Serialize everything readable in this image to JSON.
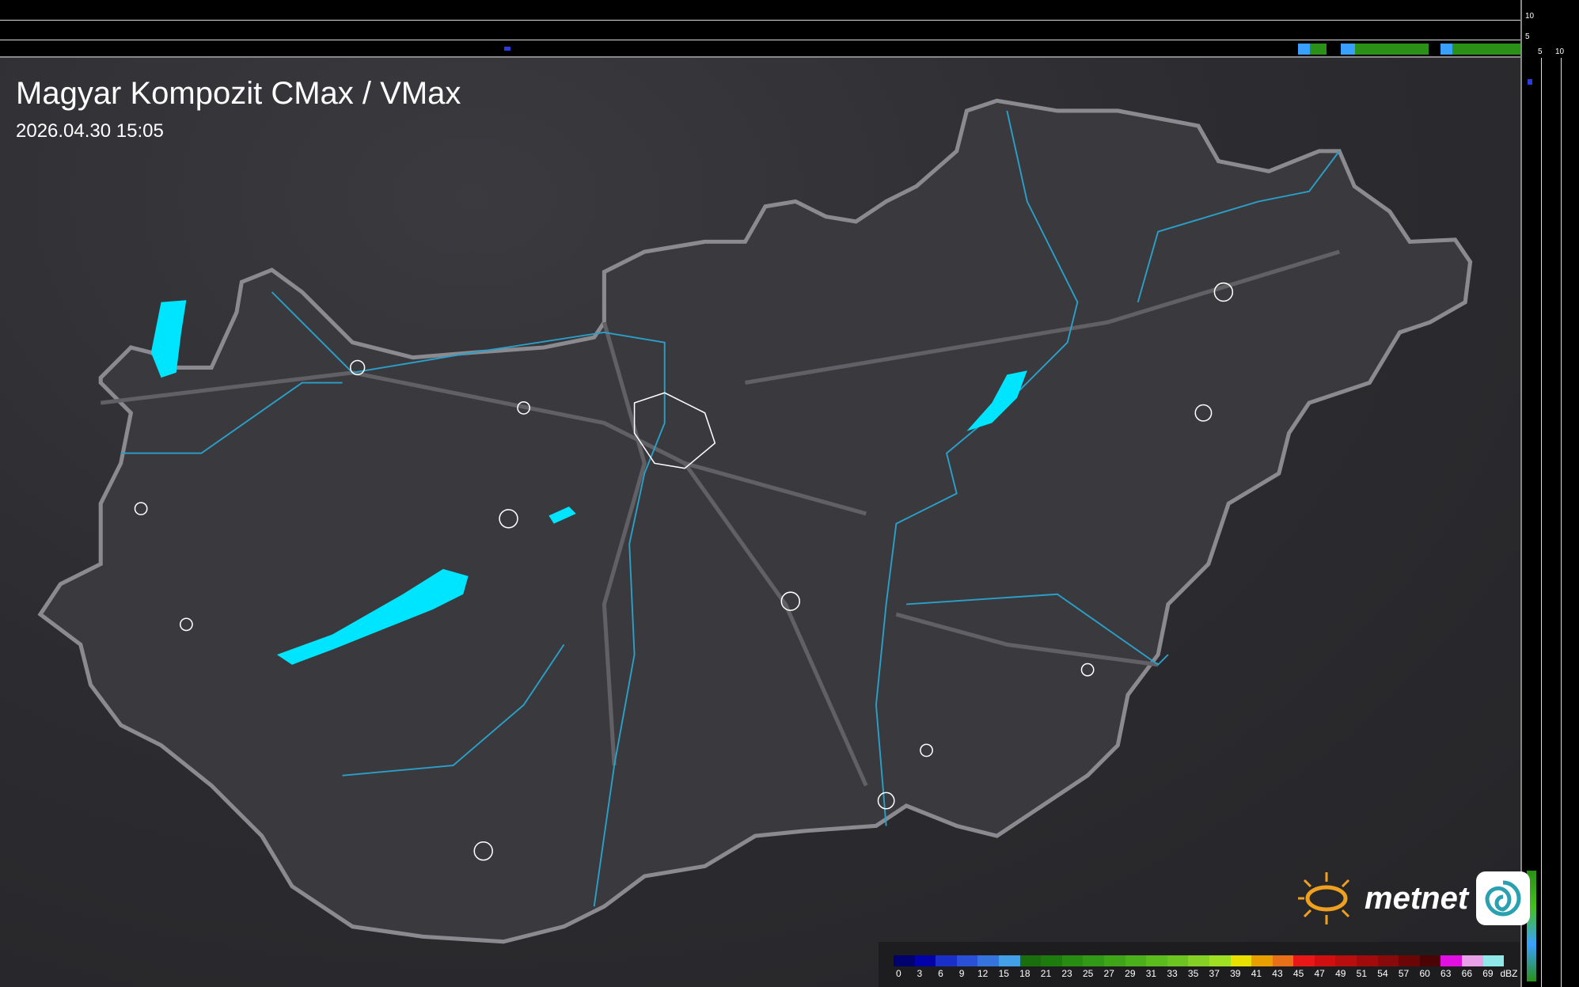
{
  "title": "Magyar Kompozit CMax / VMax",
  "timestamp": "2026.04.30 15:05",
  "profile_axes": {
    "top_ticks": [
      "10",
      "5"
    ],
    "right_ticks": [
      "5",
      "10"
    ]
  },
  "legend": {
    "unit": "dBZ",
    "labels": [
      "0",
      "3",
      "6",
      "9",
      "12",
      "15",
      "18",
      "21",
      "23",
      "25",
      "27",
      "29",
      "31",
      "33",
      "35",
      "37",
      "39",
      "41",
      "43",
      "45",
      "47",
      "49",
      "51",
      "54",
      "57",
      "60",
      "63",
      "66",
      "69"
    ],
    "colors": [
      "#02026e",
      "#0202a8",
      "#1a2ec8",
      "#2a50d8",
      "#3474dc",
      "#44a0e6",
      "#1a6e0e",
      "#1e7c0e",
      "#288c12",
      "#329818",
      "#40a418",
      "#4cb01c",
      "#5cbc1e",
      "#6cc420",
      "#84d024",
      "#a0e024",
      "#e8e000",
      "#e8a000",
      "#e87018",
      "#e81818",
      "#d01010",
      "#b80e0e",
      "#a00c0c",
      "#880a0a",
      "#6a0606",
      "#4a0404",
      "#e010e0",
      "#e8a0e8",
      "#90e8e8"
    ]
  },
  "logo": {
    "brand": "metnet"
  },
  "colors": {
    "water": "#00e5ff",
    "border": "#8a8a90",
    "rivers": "#2aa0c8",
    "towns": "#ffffff"
  }
}
